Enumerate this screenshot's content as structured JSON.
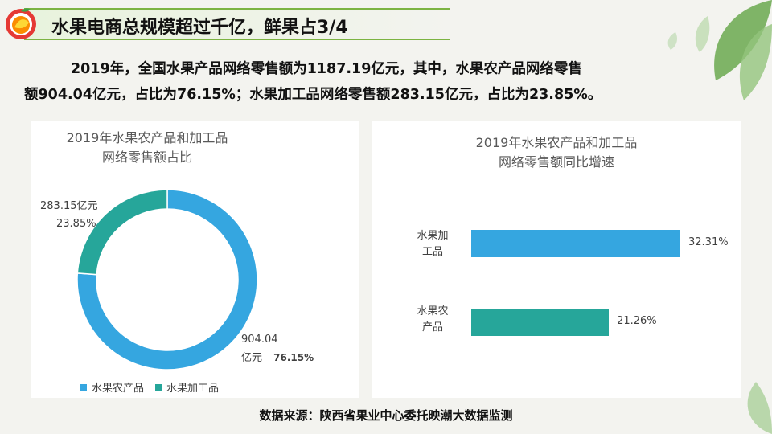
{
  "header": {
    "title": "水果电商总规模超过千亿，鲜果占3/4"
  },
  "intro": {
    "line1": "2019年，全国水果产品网络零售额为1187.19亿元，其中，水果农产品网络零售",
    "line2": "额904.04亿元，占比为76.15%；水果加工品网络零售额283.15亿元，占比为23.85%。"
  },
  "colors": {
    "blue": "#35a6e0",
    "teal": "#26a69a",
    "accent_green": "#7cb342"
  },
  "chart_data": [
    {
      "type": "pie",
      "title_line1": "2019年水果农产品和加工品",
      "title_line2": "网络零售额占比",
      "slices": [
        {
          "name": "水果农产品",
          "value": 904.04,
          "percent": 76.15,
          "value_label": "904.04",
          "unit_label": "亿元",
          "percent_label": "76.15%"
        },
        {
          "name": "水果加工品",
          "value": 283.15,
          "percent": 23.85,
          "value_label": "283.15亿元",
          "percent_label": "23.85%"
        }
      ],
      "legend": [
        "水果农产品",
        "水果加工品"
      ],
      "legend_position": "bottom",
      "donut": true
    },
    {
      "type": "bar",
      "orientation": "horizontal",
      "title_line1": "2019年水果农产品和加工品",
      "title_line2": "网络零售额同比增速",
      "categories": [
        "水果加工品",
        "水果农产品"
      ],
      "category_lines": [
        [
          "水果加",
          "工品"
        ],
        [
          "水果农",
          "产品"
        ]
      ],
      "values": [
        32.31,
        21.26
      ],
      "value_labels": [
        "32.31%",
        "21.26%"
      ],
      "colors": [
        "#35a6e0",
        "#26a69a"
      ]
    }
  ],
  "footer": {
    "source": "数据来源：陕西省果业中心委托映潮大数据监测"
  }
}
